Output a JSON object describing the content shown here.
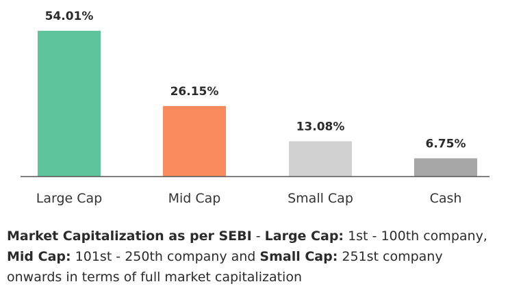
{
  "chart_data": {
    "type": "bar",
    "categories": [
      "Large Cap",
      "Mid Cap",
      "Small Cap",
      "Cash"
    ],
    "values": [
      54.01,
      26.15,
      13.08,
      6.75
    ],
    "value_labels": [
      "54.01%",
      "26.15%",
      "13.08%",
      "6.75%"
    ],
    "colors": [
      "#5ec49b",
      "#f98a5d",
      "#d1d1d1",
      "#a6a6a6"
    ],
    "ylim": [
      0,
      54.01
    ],
    "grid": false,
    "legend": "none"
  },
  "footnote": {
    "part1_bold": "Market Capitalization as per SEBI",
    "part2": " - ",
    "part3_bold": "Large Cap:",
    "part4": " 1st - 100th company, ",
    "part5_bold": "Mid Cap:",
    "part6": " 101st - 250th company and ",
    "part7_bold": "Small Cap:",
    "part8": " 251st company onwards in terms of full market capitalization"
  }
}
